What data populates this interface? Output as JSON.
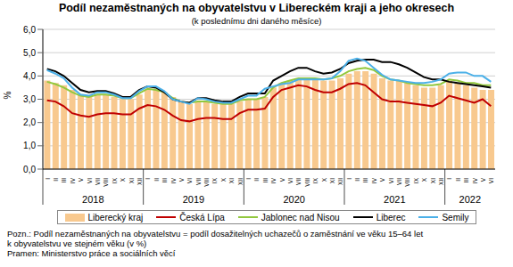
{
  "chart_data": {
    "type": "bar",
    "title": "Podíl nezaměstnaných na obyvatelstvu v Libereckém kraji a jeho okresech",
    "subtitle": "(k poslednímu dni daného měsíce)",
    "y_label": "%",
    "notes": [
      "Pozn.: Podíl nezaměstnaných na obyvatelstvu = podíl dosažitelných uchazečů o zaměstnání ve věku 15–64 let",
      "k obyvatelstvu ve stejném věku (v %)",
      "Pramen: Ministerstvo práce a sociálních věcí"
    ],
    "x_groups": [
      "2018",
      "2019",
      "2020",
      "2021",
      "2022"
    ],
    "categories": [
      "I",
      "II",
      "III",
      "IV",
      "V",
      "VI",
      "VII",
      "VIII",
      "IX",
      "X",
      "XI",
      "XII",
      "I",
      "II",
      "III",
      "IV",
      "V",
      "VI",
      "VII",
      "VIII",
      "IX",
      "X",
      "XI",
      "XII",
      "I",
      "II",
      "III",
      "IV",
      "V",
      "VI",
      "VII",
      "VIII",
      "IX",
      "X",
      "XI",
      "XII",
      "I",
      "II",
      "III",
      "IV",
      "V",
      "VI",
      "VII",
      "VIII",
      "IX",
      "X",
      "XI",
      "XII",
      "I",
      "II",
      "III",
      "IV",
      "V",
      "VI"
    ],
    "series": [
      {
        "name": "Liberecký kraj",
        "type": "bar",
        "color": "#f8c98f",
        "values": [
          3.8,
          3.7,
          3.6,
          3.4,
          3.2,
          3.1,
          3.2,
          3.2,
          3.1,
          3.0,
          3.0,
          3.2,
          3.4,
          3.4,
          3.3,
          3.1,
          2.9,
          2.8,
          2.9,
          2.9,
          2.8,
          2.8,
          2.8,
          2.9,
          3.0,
          3.0,
          3.1,
          3.5,
          3.7,
          3.8,
          3.9,
          3.9,
          3.9,
          3.8,
          3.8,
          3.9,
          4.1,
          4.2,
          4.2,
          4.1,
          3.9,
          3.8,
          3.8,
          3.7,
          3.6,
          3.5,
          3.5,
          3.6,
          3.8,
          3.7,
          3.6,
          3.5,
          3.4,
          3.4
        ]
      },
      {
        "name": "Česká Lípa",
        "type": "line",
        "color": "#c00000",
        "values": [
          2.95,
          2.9,
          2.7,
          2.4,
          2.3,
          2.25,
          2.35,
          2.4,
          2.4,
          2.35,
          2.35,
          2.6,
          2.75,
          2.7,
          2.55,
          2.3,
          2.1,
          2.05,
          2.15,
          2.2,
          2.2,
          2.15,
          2.15,
          2.4,
          2.55,
          2.55,
          2.6,
          3.1,
          3.4,
          3.5,
          3.6,
          3.55,
          3.4,
          3.3,
          3.3,
          3.45,
          3.65,
          3.7,
          3.6,
          3.3,
          3.0,
          2.9,
          2.9,
          2.85,
          2.8,
          2.75,
          2.7,
          2.85,
          3.15,
          3.05,
          2.95,
          2.85,
          3.0,
          2.7
        ]
      },
      {
        "name": "Jablonec nad Nisou",
        "type": "line",
        "color": "#92c83e",
        "values": [
          3.75,
          3.65,
          3.5,
          3.3,
          3.15,
          3.1,
          3.2,
          3.2,
          3.15,
          3.05,
          3.05,
          3.25,
          3.45,
          3.4,
          3.3,
          3.05,
          2.9,
          2.85,
          2.9,
          2.9,
          2.85,
          2.8,
          2.8,
          2.95,
          3.0,
          3.0,
          3.1,
          3.5,
          3.7,
          3.8,
          3.9,
          3.9,
          3.9,
          3.85,
          3.9,
          4.0,
          4.2,
          4.3,
          4.35,
          4.25,
          4.0,
          3.85,
          3.8,
          3.7,
          3.65,
          3.6,
          3.6,
          3.65,
          3.85,
          3.8,
          3.7,
          3.7,
          3.6,
          3.6
        ]
      },
      {
        "name": "Liberec",
        "type": "line",
        "color": "#000000",
        "values": [
          4.3,
          4.2,
          4.0,
          3.7,
          3.4,
          3.3,
          3.35,
          3.35,
          3.25,
          3.1,
          3.1,
          3.4,
          3.55,
          3.5,
          3.3,
          3.0,
          2.9,
          2.85,
          3.05,
          3.05,
          2.95,
          2.9,
          2.9,
          3.1,
          3.25,
          3.25,
          3.25,
          3.8,
          4.0,
          4.2,
          4.35,
          4.35,
          4.2,
          4.1,
          4.15,
          4.3,
          4.55,
          4.65,
          4.7,
          4.7,
          4.6,
          4.6,
          4.5,
          4.35,
          4.15,
          3.95,
          3.85,
          3.85,
          3.75,
          3.7,
          3.65,
          3.6,
          3.55,
          3.5
        ]
      },
      {
        "name": "Semily",
        "type": "line",
        "color": "#4bb0e8",
        "values": [
          4.25,
          4.1,
          3.9,
          3.5,
          3.2,
          3.15,
          3.3,
          3.3,
          3.2,
          3.05,
          3.05,
          3.35,
          3.55,
          3.55,
          3.35,
          3.0,
          2.9,
          2.8,
          3.05,
          3.0,
          2.9,
          2.85,
          2.85,
          3.0,
          3.15,
          3.15,
          3.45,
          3.55,
          3.65,
          3.7,
          3.85,
          3.85,
          3.85,
          3.85,
          3.9,
          4.2,
          4.65,
          4.75,
          4.65,
          4.35,
          4.05,
          3.85,
          3.8,
          3.75,
          3.7,
          3.7,
          3.75,
          3.85,
          4.1,
          4.15,
          4.15,
          4.0,
          4.0,
          3.75
        ]
      }
    ],
    "ylim": [
      0,
      6
    ],
    "yticks": [
      {
        "value": 0,
        "label": "0,0"
      },
      {
        "value": 1,
        "label": "1,0"
      },
      {
        "value": 2,
        "label": "2,0"
      },
      {
        "value": 3,
        "label": "3,0"
      },
      {
        "value": 4,
        "label": "4,0"
      },
      {
        "value": 5,
        "label": "5,0"
      },
      {
        "value": 6,
        "label": "6,0"
      }
    ],
    "grid": true,
    "legend": "bottom"
  }
}
